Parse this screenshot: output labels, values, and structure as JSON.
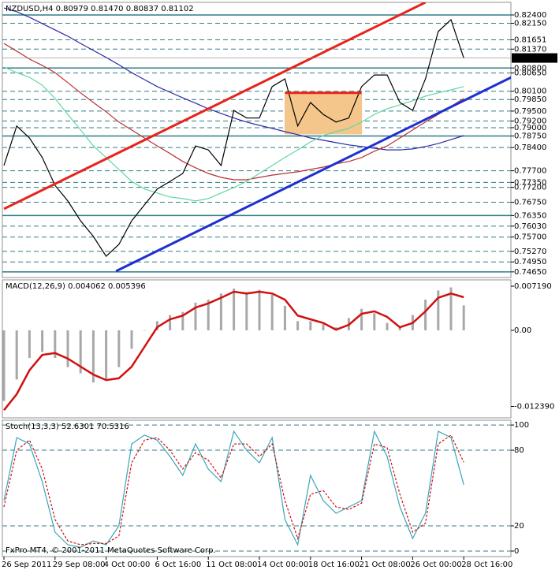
{
  "chart_data": [
    {
      "type": "line",
      "title": "NZDUSD,H4  0.80979 0.81470 0.80837 0.81102",
      "categories": [
        "26 Sep 2011",
        null,
        null,
        null,
        "29 Sep 08:00",
        null,
        null,
        null,
        "4 Oct 00:00",
        null,
        null,
        null,
        "6 Oct 16:00",
        null,
        null,
        null,
        "11 Oct 08:00",
        null,
        null,
        null,
        "14 Oct 00:00",
        null,
        null,
        null,
        "18 Oct 16:00",
        null,
        null,
        null,
        "21 Oct 08:00",
        null,
        null,
        null,
        "26 Oct 00:00",
        null,
        null,
        null,
        "28 Oct 16:00"
      ],
      "ylim": [
        0.7448,
        0.8278
      ],
      "yticks": [
        {
          "value": 0.824,
          "label": "0.82400"
        },
        {
          "value": 0.8215,
          "label": "0.82150"
        },
        {
          "value": 0.81651,
          "label": "0.81651"
        },
        {
          "value": 0.8137,
          "label": "0.81370"
        },
        {
          "value": 0.808,
          "label": "0.80800"
        },
        {
          "value": 0.8065,
          "label": "0.80650"
        },
        {
          "value": 0.801,
          "label": "0.80100"
        },
        {
          "value": 0.7985,
          "label": "0.79850"
        },
        {
          "value": 0.795,
          "label": "0.79500"
        },
        {
          "value": 0.792,
          "label": "0.79200"
        },
        {
          "value": 0.79,
          "label": "0.79000"
        },
        {
          "value": 0.7875,
          "label": "0.78750"
        },
        {
          "value": 0.784,
          "label": "0.78400"
        },
        {
          "value": 0.777,
          "label": "0.77700"
        },
        {
          "value": 0.7735,
          "label": "0.77350"
        },
        {
          "value": 0.772,
          "label": "0.77200"
        },
        {
          "value": 0.7675,
          "label": "0.76750"
        },
        {
          "value": 0.7635,
          "label": "0.76350"
        },
        {
          "value": 0.7603,
          "label": "0.76030"
        },
        {
          "value": 0.757,
          "label": "0.75700"
        },
        {
          "value": 0.7527,
          "label": "0.75270"
        },
        {
          "value": 0.7495,
          "label": "0.74950"
        },
        {
          "value": 0.7465,
          "label": "0.74650"
        }
      ],
      "grid": true,
      "solid_levels": [
        0.824,
        0.808,
        0.7875,
        0.7635,
        0.7465
      ],
      "last_price": {
        "value": 0.81102,
        "label": "0.81102"
      },
      "boxes": [
        {
          "color": "#f5c68c",
          "from": [
            22,
            0.8005
          ],
          "to": [
            28,
            0.7881
          ]
        }
      ],
      "trendlines": [
        {
          "color": "#e8231a",
          "from": [
            0,
            0.7655
          ],
          "to": [
            33,
            0.8278
          ]
        },
        {
          "color": "#1f2fd0",
          "from": [
            8.77,
            0.7467
          ],
          "to": [
            41,
            0.8076
          ]
        },
        {
          "color": "#e8231a",
          "from": [
            22,
            0.8005
          ],
          "to": [
            28,
            0.8005
          ]
        }
      ],
      "series": [
        {
          "name": "MA slow",
          "color": "#2a2aa8",
          "style": "solid",
          "values": [
            0.8261,
            0.825,
            0.8233,
            0.8214,
            0.8195,
            0.8176,
            0.8154,
            0.8133,
            0.8112,
            0.809,
            0.8066,
            0.8045,
            0.8024,
            0.8007,
            0.799,
            0.7974,
            0.7957,
            0.7943,
            0.7929,
            0.7917,
            0.7907,
            0.7898,
            0.7888,
            0.7879,
            0.7869,
            0.7862,
            0.7855,
            0.7848,
            0.7843,
            0.7838,
            0.7833,
            0.7833,
            0.7836,
            0.7843,
            0.7852,
            0.7864,
            0.7876
          ]
        },
        {
          "name": "MA mid",
          "color": "#b83232",
          "style": "solid",
          "values": [
            0.8154,
            0.8131,
            0.8107,
            0.8088,
            0.8066,
            0.8036,
            0.8005,
            0.7976,
            0.7948,
            0.7917,
            0.7893,
            0.7869,
            0.7845,
            0.7822,
            0.7798,
            0.7779,
            0.7762,
            0.775,
            0.7743,
            0.7743,
            0.775,
            0.7757,
            0.7762,
            0.7767,
            0.7774,
            0.7781,
            0.7791,
            0.7798,
            0.781,
            0.7829,
            0.7845,
            0.7869,
            0.7893,
            0.7917,
            0.794,
            0.7964,
            0.7988
          ]
        },
        {
          "name": "MA fast",
          "color": "#5fd8a0",
          "style": "solid",
          "values": [
            0.8083,
            0.8066,
            0.8052,
            0.8028,
            0.7988,
            0.794,
            0.7893,
            0.7845,
            0.781,
            0.7774,
            0.7738,
            0.7715,
            0.7703,
            0.7691,
            0.7686,
            0.7679,
            0.7686,
            0.7703,
            0.7719,
            0.7738,
            0.7762,
            0.7786,
            0.781,
            0.7833,
            0.7857,
            0.7876,
            0.7888,
            0.7898,
            0.7917,
            0.794,
            0.7957,
            0.7969,
            0.7981,
            0.7995,
            0.8005,
            0.8014,
            0.8024
          ]
        },
        {
          "name": "NZDUSD",
          "color": "#000000",
          "style": "solid",
          "values": [
            0.7786,
            0.7905,
            0.7869,
            0.781,
            0.7726,
            0.7679,
            0.7619,
            0.7572,
            0.7512,
            0.7548,
            0.7619,
            0.7667,
            0.7715,
            0.7738,
            0.7762,
            0.7845,
            0.7833,
            0.7786,
            0.7952,
            0.7929,
            0.7929,
            0.8024,
            0.8047,
            0.7905,
            0.7976,
            0.794,
            0.7917,
            0.7929,
            0.8024,
            0.8059,
            0.8059,
            0.7976,
            0.7952,
            0.8047,
            0.819,
            0.8226,
            0.811
          ]
        }
      ]
    },
    {
      "type": "line",
      "title": "MACD(12,26,9) 0.004062 0.005396",
      "ylim": [
        -0.01425,
        0.00822
      ],
      "yticks": [
        {
          "value": 0.00719,
          "label": "0.007190"
        },
        {
          "value": 0,
          "label": "0.00"
        },
        {
          "value": -0.01239,
          "label": "-0.012390"
        }
      ],
      "grid": false,
      "series": [
        {
          "name": "MACD",
          "color": "#a8a8a8",
          "style": "bars",
          "values": [
            -0.0115,
            -0.008,
            -0.0045,
            -0.0035,
            -0.0045,
            -0.006,
            -0.007,
            -0.0085,
            -0.008,
            -0.006,
            -0.003,
            0.0,
            0.0015,
            0.0025,
            0.003,
            0.0045,
            0.005,
            0.006,
            0.0068,
            0.0062,
            0.0066,
            0.0058,
            0.004,
            0.0015,
            0.0015,
            0.001,
            0.0005,
            0.002,
            0.0035,
            0.0028,
            0.0012,
            0.0005,
            0.0025,
            0.005,
            0.0065,
            0.007,
            0.004062
          ]
        },
        {
          "name": "Signal",
          "color": "#d01010",
          "style": "thick",
          "values": [
            -0.013,
            -0.0104,
            -0.0065,
            -0.004,
            -0.0037,
            -0.0046,
            -0.0059,
            -0.0072,
            -0.0081,
            -0.0078,
            -0.0059,
            -0.0027,
            0.0005,
            0.0018,
            0.0024,
            0.0037,
            0.0044,
            0.0053,
            0.0063,
            0.006,
            0.0063,
            0.006,
            0.005,
            0.0024,
            0.0018,
            0.0012,
            0.0001,
            0.0009,
            0.0027,
            0.0031,
            0.0022,
            0.0005,
            0.0012,
            0.0031,
            0.0053,
            0.006,
            0.005396
          ]
        }
      ]
    },
    {
      "type": "line",
      "title": "Stoch(13,3,3) 52.6301 70.5316",
      "footer": "FxPro MT4, © 2001-2011 MetaQuotes Software Corp.",
      "ylim": [
        -4.4,
        103.8
      ],
      "yticks": [
        100,
        80,
        20,
        0
      ],
      "grid": true,
      "series": [
        {
          "name": "Main",
          "color": "#3aa6b8",
          "style": "solid",
          "values": [
            40,
            90,
            85,
            55,
            15,
            5,
            3,
            8,
            5,
            20,
            85,
            92,
            88,
            75,
            60,
            85,
            65,
            55,
            95,
            80,
            70,
            90,
            25,
            5,
            60,
            40,
            30,
            35,
            40,
            95,
            75,
            35,
            10,
            30,
            95,
            90,
            52.6301
          ]
        },
        {
          "name": "Signal",
          "color": "#d01010",
          "style": "dashed",
          "values": [
            35,
            80,
            88,
            65,
            25,
            8,
            5,
            6,
            6,
            12,
            70,
            88,
            90,
            80,
            65,
            78,
            72,
            58,
            85,
            85,
            75,
            85,
            40,
            10,
            45,
            48,
            35,
            33,
            38,
            85,
            82,
            45,
            15,
            22,
            85,
            92,
            70.5316
          ]
        }
      ]
    }
  ]
}
